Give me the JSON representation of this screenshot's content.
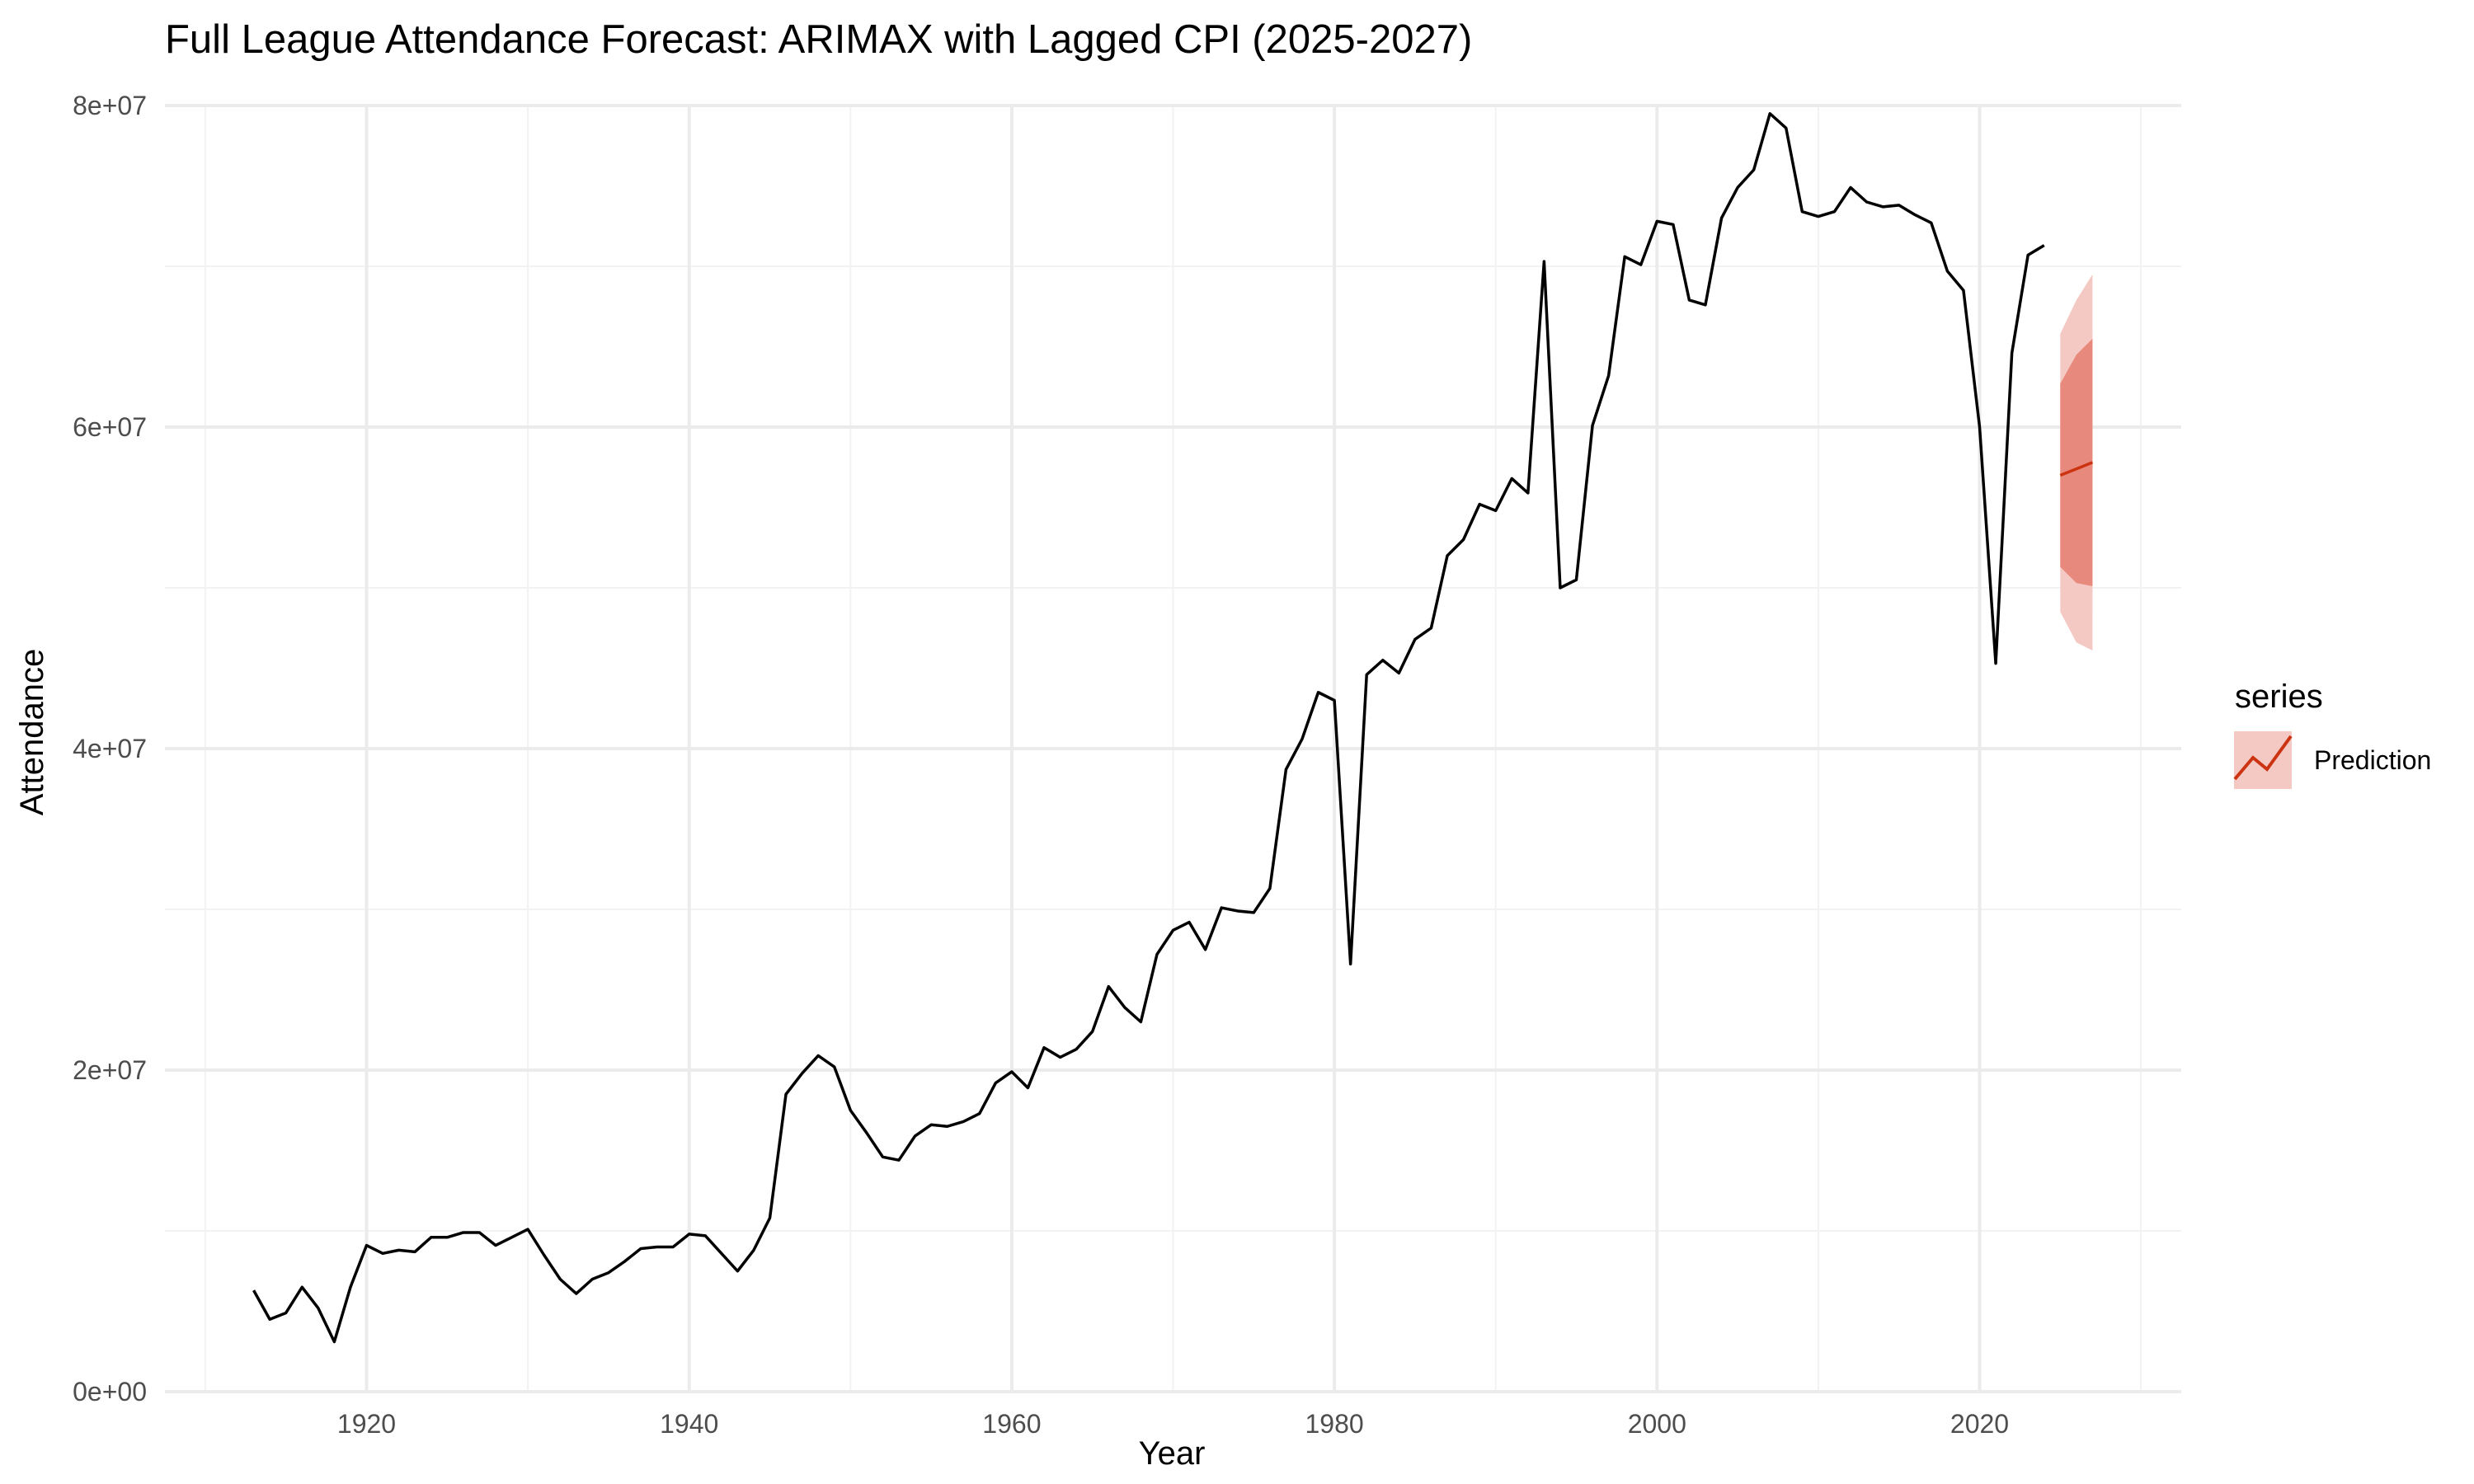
{
  "chart_data": {
    "type": "line",
    "title": "Full League Attendance Forecast: ARIMAX with Lagged CPI (2025-2027)",
    "xlabel": "Year",
    "ylabel": "Attendance",
    "xlim": [
      1907.5,
      2032.5
    ],
    "ylim": [
      0,
      80000000
    ],
    "x_ticks": [
      1920,
      1940,
      1960,
      1980,
      2000,
      2020
    ],
    "x_tick_labels": [
      "1920",
      "1940",
      "1960",
      "1980",
      "2000",
      "2020"
    ],
    "y_ticks": [
      0,
      20000000,
      40000000,
      60000000,
      80000000
    ],
    "y_tick_labels": [
      "0e+00",
      "2e+07",
      "4e+07",
      "6e+07",
      "8e+07"
    ],
    "grid": true,
    "legend": {
      "title": "series",
      "position": "right",
      "entries": [
        "Prediction"
      ]
    },
    "colors": {
      "history": "#000000",
      "forecast_line": "#cc3311",
      "ci80": "#e8897d",
      "ci95": "#f5c9c3"
    },
    "series": [
      {
        "role": "history",
        "x": [
          1913,
          1914,
          1915,
          1916,
          1917,
          1918,
          1919,
          1920,
          1921,
          1922,
          1923,
          1924,
          1925,
          1926,
          1927,
          1928,
          1929,
          1930,
          1931,
          1932,
          1933,
          1934,
          1935,
          1936,
          1937,
          1938,
          1939,
          1940,
          1941,
          1942,
          1943,
          1944,
          1945,
          1946,
          1947,
          1948,
          1949,
          1950,
          1951,
          1952,
          1953,
          1954,
          1955,
          1956,
          1957,
          1958,
          1959,
          1960,
          1961,
          1962,
          1963,
          1964,
          1965,
          1966,
          1967,
          1968,
          1969,
          1970,
          1971,
          1972,
          1973,
          1974,
          1975,
          1976,
          1977,
          1978,
          1979,
          1980,
          1981,
          1982,
          1983,
          1984,
          1985,
          1986,
          1987,
          1988,
          1989,
          1990,
          1991,
          1992,
          1993,
          1994,
          1995,
          1996,
          1997,
          1998,
          1999,
          2000,
          2001,
          2002,
          2003,
          2004,
          2005,
          2006,
          2007,
          2008,
          2009,
          2010,
          2011,
          2012,
          2013,
          2014,
          2015,
          2016,
          2017,
          2018,
          2019,
          2020,
          2021,
          2022,
          2023,
          2024
        ],
        "values": [
          6300000,
          4500000,
          4900000,
          6500000,
          5200000,
          3100000,
          6500000,
          9100000,
          8600000,
          8800000,
          8700000,
          9600000,
          9600000,
          9900000,
          9900000,
          9100000,
          9600000,
          10100000,
          8500000,
          7000000,
          6100000,
          7000000,
          7400000,
          8100000,
          8900000,
          9000000,
          9000000,
          9800000,
          9700000,
          8600000,
          7500000,
          8800000,
          10800000,
          18500000,
          19800000,
          20900000,
          20200000,
          17500000,
          16100000,
          14600000,
          14400000,
          15900000,
          16600000,
          16500000,
          16800000,
          17300000,
          19200000,
          19900000,
          18900000,
          21400000,
          20800000,
          21300000,
          22400000,
          25200000,
          23900000,
          23000000,
          27200000,
          28700000,
          29200000,
          27500000,
          30100000,
          29900000,
          29800000,
          31300000,
          38700000,
          40600000,
          43500000,
          43000000,
          26600000,
          44600000,
          45500000,
          44700000,
          46800000,
          47500000,
          52000000,
          53000000,
          55200000,
          54800000,
          56800000,
          55900000,
          70300000,
          50000000,
          50500000,
          60100000,
          63200000,
          70600000,
          70100000,
          72800000,
          72600000,
          67900000,
          67600000,
          73000000,
          74900000,
          76000000,
          79500000,
          78600000,
          73400000,
          73100000,
          73400000,
          74900000,
          74000000,
          73700000,
          73800000,
          73200000,
          72700000,
          69700000,
          68500000,
          60000000,
          45300000,
          64600000,
          70700000,
          71300000
        ]
      },
      {
        "role": "forecast",
        "name": "Prediction",
        "x": [
          2025,
          2026,
          2027
        ],
        "values": [
          57000000,
          57400000,
          57800000
        ],
        "lower80": [
          51300000,
          50300000,
          50100000
        ],
        "upper80": [
          62700000,
          64500000,
          65500000
        ],
        "lower95": [
          48500000,
          46600000,
          46100000
        ],
        "upper95": [
          65800000,
          67900000,
          69500000
        ]
      }
    ]
  }
}
